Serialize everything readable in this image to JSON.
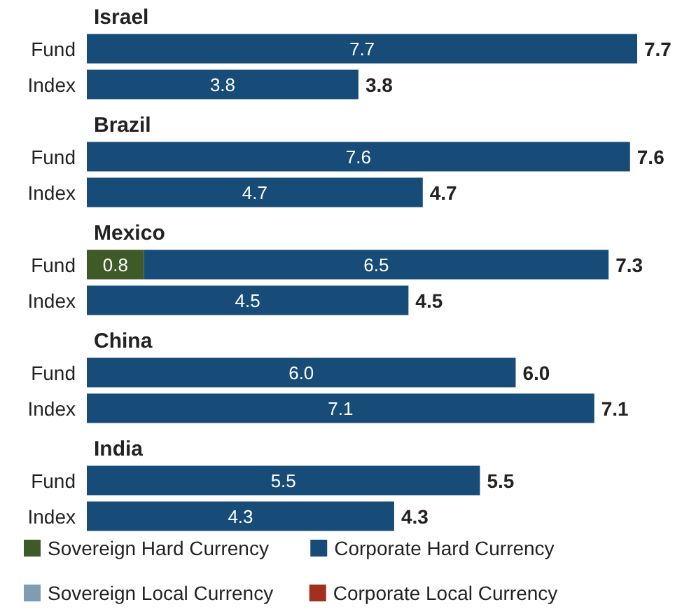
{
  "chart_data": [
    {
      "type": "bar",
      "orientation": "horizontal",
      "stacked": true,
      "title": "Israel",
      "categories": [
        "Fund",
        "Index"
      ],
      "tick_labels": "y",
      "grid": false,
      "legend": false,
      "totals": [
        "7.7",
        "3.8"
      ],
      "series": [
        {
          "color": "#174b78",
          "values": [
            7.7,
            3.8
          ],
          "value_labels": [
            "7.7",
            "3.8"
          ]
        }
      ]
    },
    {
      "type": "bar",
      "orientation": "horizontal",
      "stacked": true,
      "title": "Brazil",
      "categories": [
        "Fund",
        "Index"
      ],
      "tick_labels": "y",
      "grid": false,
      "legend": false,
      "totals": [
        "7.6",
        "4.7"
      ],
      "series": [
        {
          "color": "#174b78",
          "values": [
            7.6,
            4.7
          ],
          "value_labels": [
            "7.6",
            "4.7"
          ]
        }
      ]
    },
    {
      "type": "bar",
      "orientation": "horizontal",
      "stacked": true,
      "title": "Mexico",
      "categories": [
        "Fund",
        "Index"
      ],
      "tick_labels": "y",
      "grid": false,
      "legend": false,
      "totals": [
        "7.3",
        "4.5"
      ],
      "series": [
        {
          "color": "#3e5a27",
          "values": [
            0.8,
            null
          ],
          "value_labels": [
            "0.8",
            null
          ]
        },
        {
          "color": "#174b78",
          "values": [
            6.5,
            4.5
          ],
          "value_labels": [
            "6.5",
            "4.5"
          ]
        }
      ]
    },
    {
      "type": "bar",
      "orientation": "horizontal",
      "stacked": true,
      "title": "China",
      "categories": [
        "Fund",
        "Index"
      ],
      "tick_labels": "y",
      "grid": false,
      "legend": false,
      "totals": [
        "6.0",
        "7.1"
      ],
      "series": [
        {
          "color": "#174b78",
          "values": [
            6.0,
            7.1
          ],
          "value_labels": [
            "6.0",
            "7.1"
          ]
        }
      ]
    },
    {
      "type": "bar",
      "orientation": "horizontal",
      "stacked": true,
      "title": "India",
      "categories": [
        "Fund",
        "Index"
      ],
      "tick_labels": "y",
      "grid": false,
      "legend": "bottom",
      "totals": [
        "5.5",
        "4.3"
      ],
      "series": [
        {
          "name": "Sovereign Hard Currency",
          "color": "#3e5a27",
          "values": [
            null,
            null
          ],
          "value_labels": [
            null,
            null
          ]
        },
        {
          "name": "Corporate Hard Currency",
          "color": "#174b78",
          "values": [
            5.5,
            4.3
          ],
          "value_labels": [
            "5.5",
            "4.3"
          ]
        },
        {
          "name": "Sovereign Local Currency",
          "color": "#7f9cb4",
          "values": [
            null,
            null
          ],
          "value_labels": [
            null,
            null
          ]
        },
        {
          "name": "Corporate Local Currency",
          "color": "#a3301f",
          "values": [
            null,
            null
          ],
          "value_labels": [
            null,
            null
          ]
        }
      ]
    }
  ]
}
